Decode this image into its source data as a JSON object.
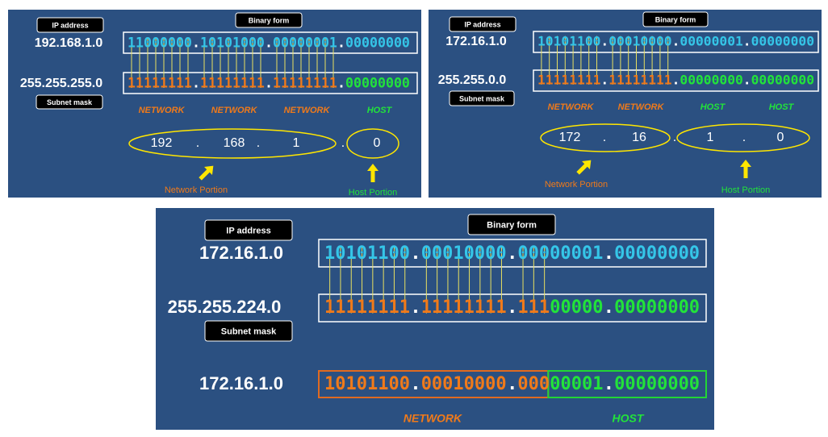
{
  "panels": [
    {
      "ip_label": "IP address",
      "binary_label": "Binary form",
      "subnet_label": "Subnet mask",
      "ip": "192.168.1.0",
      "mask": "255.255.255.0",
      "ip_binary": [
        {
          "text": "11000000",
          "color": "#35c6e8"
        },
        {
          "text": ".",
          "color": "#ffffff"
        },
        {
          "text": "10101000",
          "color": "#35c6e8"
        },
        {
          "text": ".",
          "color": "#ffffff"
        },
        {
          "text": "00000001",
          "color": "#35c6e8"
        },
        {
          "text": ".",
          "color": "#ffffff"
        },
        {
          "text": "00000000",
          "color": "#35c6e8"
        }
      ],
      "mask_binary": [
        {
          "text": "11111111",
          "color": "#f07a1a"
        },
        {
          "text": ".",
          "color": "#ffffff"
        },
        {
          "text": "11111111",
          "color": "#f07a1a"
        },
        {
          "text": ".",
          "color": "#ffffff"
        },
        {
          "text": "11111111",
          "color": "#f07a1a"
        },
        {
          "text": ".",
          "color": "#ffffff"
        },
        {
          "text": "00000000",
          "color": "#22e33a"
        }
      ],
      "portions": [
        {
          "text": "NETWORK",
          "color": "#f07a1a"
        },
        {
          "text": "NETWORK",
          "color": "#f07a1a"
        },
        {
          "text": "NETWORK",
          "color": "#f07a1a"
        },
        {
          "text": "HOST",
          "color": "#22e33a"
        }
      ],
      "decimal": [
        "192",
        ".",
        "168",
        ".",
        "1",
        ".",
        "0"
      ],
      "network_caption": "Network Portion",
      "host_caption": "Host Portion"
    },
    {
      "ip_label": "IP address",
      "binary_label": "Binary form",
      "subnet_label": "Subnet mask",
      "ip": "172.16.1.0",
      "mask": "255.255.0.0",
      "ip_binary": [
        {
          "text": "10101100",
          "color": "#35c6e8"
        },
        {
          "text": ".",
          "color": "#ffffff"
        },
        {
          "text": "00010000",
          "color": "#35c6e8"
        },
        {
          "text": ".",
          "color": "#ffffff"
        },
        {
          "text": "00000001",
          "color": "#35c6e8"
        },
        {
          "text": ".",
          "color": "#ffffff"
        },
        {
          "text": "00000000",
          "color": "#35c6e8"
        }
      ],
      "mask_binary": [
        {
          "text": "11111111",
          "color": "#f07a1a"
        },
        {
          "text": ".",
          "color": "#ffffff"
        },
        {
          "text": "11111111",
          "color": "#f07a1a"
        },
        {
          "text": ".",
          "color": "#ffffff"
        },
        {
          "text": "00000000",
          "color": "#22e33a"
        },
        {
          "text": ".",
          "color": "#ffffff"
        },
        {
          "text": "00000000",
          "color": "#22e33a"
        }
      ],
      "portions": [
        {
          "text": "NETWORK",
          "color": "#f07a1a"
        },
        {
          "text": "NETWORK",
          "color": "#f07a1a"
        },
        {
          "text": "HOST",
          "color": "#22e33a"
        },
        {
          "text": "HOST",
          "color": "#22e33a"
        }
      ],
      "decimal": [
        "172",
        ".",
        "16",
        ".",
        "1",
        ".",
        "0"
      ],
      "network_caption": "Network Portion",
      "host_caption": "Host Portion"
    },
    {
      "ip_label": "IP address",
      "binary_label": "Binary form",
      "subnet_label": "Subnet mask",
      "ip": "172.16.1.0",
      "mask": "255.255.224.0",
      "result": "172.16.1.0",
      "ip_binary": [
        {
          "text": "10101100",
          "color": "#35c6e8"
        },
        {
          "text": ".",
          "color": "#ffffff"
        },
        {
          "text": "00010000",
          "color": "#35c6e8"
        },
        {
          "text": ".",
          "color": "#ffffff"
        },
        {
          "text": "00000001",
          "color": "#35c6e8"
        },
        {
          "text": ".",
          "color": "#ffffff"
        },
        {
          "text": "00000000",
          "color": "#35c6e8"
        }
      ],
      "mask_binary": [
        {
          "text": "11111111",
          "color": "#f07a1a"
        },
        {
          "text": ".",
          "color": "#ffffff"
        },
        {
          "text": "11111111",
          "color": "#f07a1a"
        },
        {
          "text": ".",
          "color": "#ffffff"
        },
        {
          "text": "111",
          "color": "#f07a1a"
        },
        {
          "text": "00000",
          "color": "#22e33a"
        },
        {
          "text": ".",
          "color": "#ffffff"
        },
        {
          "text": "00000000",
          "color": "#22e33a"
        }
      ],
      "result_binary": [
        {
          "text": "10101100",
          "color": "#f07a1a"
        },
        {
          "text": ".",
          "color": "#ffffff"
        },
        {
          "text": "00010000",
          "color": "#f07a1a"
        },
        {
          "text": ".",
          "color": "#ffffff"
        },
        {
          "text": "000",
          "color": "#f07a1a"
        },
        {
          "text": "00001",
          "color": "#22e33a"
        },
        {
          "text": ".",
          "color": "#ffffff"
        },
        {
          "text": "00000000",
          "color": "#22e33a"
        }
      ],
      "portions": [
        {
          "text": "NETWORK",
          "color": "#f07a1a"
        },
        {
          "text": "HOST",
          "color": "#22e33a"
        }
      ]
    }
  ]
}
